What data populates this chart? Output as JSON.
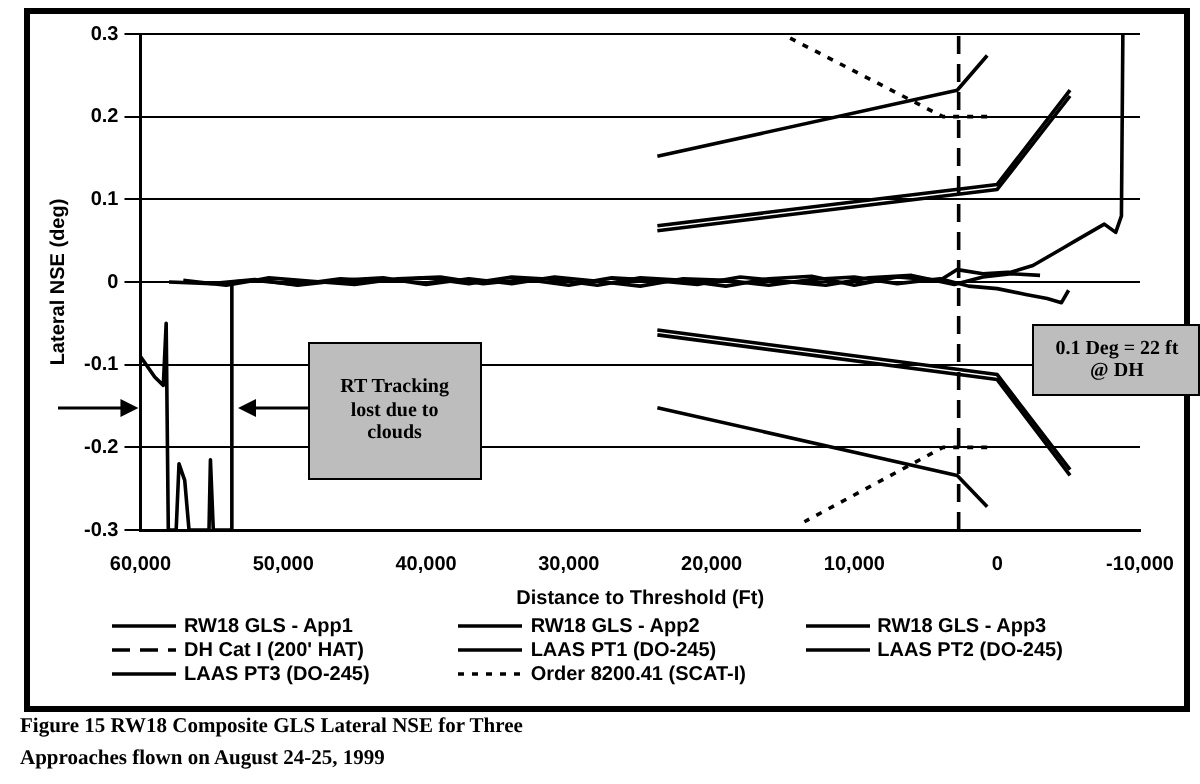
{
  "chart_data": {
    "type": "line",
    "xlabel": "Distance to Threshold (Ft)",
    "ylabel": "Lateral NSE (deg)",
    "xlim": [
      60000,
      -10000
    ],
    "xticks": [
      {
        "value": 60000,
        "label": "60,000"
      },
      {
        "value": 50000,
        "label": "50,000"
      },
      {
        "value": 40000,
        "label": "40,000"
      },
      {
        "value": 30000,
        "label": "30,000"
      },
      {
        "value": 20000,
        "label": "20,000"
      },
      {
        "value": 10000,
        "label": "10,000"
      },
      0,
      {
        "value": -10000,
        "label": "-10,000"
      }
    ],
    "ylim": [
      -0.3,
      0.3
    ],
    "yticks": [
      -0.3,
      -0.2,
      -0.1,
      0,
      0.1,
      0.2,
      0.3
    ],
    "grid": "y",
    "legend": "bottom",
    "marker": "none",
    "annotations": [
      "RT Tracking lost due to clouds",
      "0.1 Deg = 22 ft @ DH",
      "Figure 15 RW18 Composite GLS Lateral NSE for Three Approaches flown on August 24-25, 1999"
    ],
    "series": [
      {
        "name": "RW18 GLS - App1",
        "color": "#000000",
        "line_style": "solid",
        "x": [
          60000,
          59000,
          58400,
          58200,
          58050,
          57500,
          57300,
          56900,
          56600,
          55200,
          55100,
          54900,
          53700,
          53600,
          52000,
          49000,
          46000,
          43000,
          40000,
          37000,
          34000,
          31000,
          28000,
          25000,
          22000,
          19000,
          16000,
          13000,
          10000,
          7000,
          4000,
          2800,
          1000,
          -1000,
          -2500,
          -3500,
          -4500,
          -5500,
          -6500,
          -7500,
          -8300,
          -8700,
          -8800
        ],
        "values": [
          -0.09,
          -0.115,
          -0.125,
          -0.05,
          -0.3,
          -0.3,
          -0.22,
          -0.24,
          -0.3,
          -0.3,
          -0.215,
          -0.3,
          -0.3,
          0,
          0.002,
          -0.003,
          0.004,
          0.001,
          0.005,
          -0.002,
          0.006,
          0.003,
          -0.004,
          0.005,
          0.002,
          -0.005,
          0.004,
          0.007,
          -0.004,
          0.006,
          0.002,
          0.015,
          0.01,
          0.012,
          0.02,
          0.03,
          0.04,
          0.05,
          0.06,
          0.07,
          0.06,
          0.08,
          0.3
        ]
      },
      {
        "name": "RW18 GLS - App2",
        "color": "#000000",
        "line_style": "solid",
        "x": [
          58000,
          55000,
          52000,
          49000,
          46000,
          43000,
          40000,
          37000,
          34000,
          31000,
          28000,
          25000,
          22000,
          19000,
          16000,
          13000,
          10000,
          7000,
          4000,
          2000,
          0,
          -2000,
          -3500,
          -4500,
          -5000
        ],
        "values": [
          0,
          -0.002,
          0.003,
          -0.004,
          0.002,
          0.005,
          -0.003,
          0.004,
          -0.002,
          0.006,
          0.001,
          -0.005,
          0.004,
          0.002,
          -0.004,
          0.003,
          0.006,
          -0.002,
          0.004,
          -0.005,
          -0.008,
          -0.015,
          -0.02,
          -0.025,
          -0.01
        ]
      },
      {
        "name": "RW18 GLS - App3",
        "color": "#000000",
        "line_style": "solid",
        "x": [
          57000,
          54000,
          51000,
          48000,
          45000,
          42000,
          39000,
          36000,
          33000,
          30000,
          27000,
          24000,
          21000,
          18000,
          15000,
          12000,
          9000,
          6000,
          3000,
          1000,
          -1000,
          -3000
        ],
        "values": [
          0.002,
          -0.004,
          0.005,
          0.001,
          -0.003,
          0.004,
          0.006,
          -0.002,
          0.003,
          -0.004,
          0.005,
          0.002,
          -0.003,
          0.006,
          0.001,
          -0.004,
          0.005,
          0.008,
          -0.003,
          0.006,
          0.01,
          0.008
        ]
      },
      {
        "name": "DH Cat I (200' HAT)",
        "color": "#000000",
        "line_style": "dashed",
        "x": [
          2700,
          2700
        ],
        "values": [
          -0.3,
          0.3
        ]
      },
      {
        "name": "LAAS PT1 (DO-245)",
        "color": "#000000",
        "line_style": "solid",
        "x": [
          23800,
          2800,
          700
        ],
        "values": [
          0.152,
          0.232,
          0.274
        ]
      },
      {
        "color": "#000000",
        "line_style": "solid",
        "x": [
          700,
          2800,
          23800
        ],
        "values": [
          -0.272,
          -0.234,
          -0.152
        ]
      },
      {
        "name": "LAAS PT2 (DO-245)",
        "color": "#000000",
        "line_style": "solid",
        "x": [
          23800,
          0,
          -5100
        ],
        "values": [
          0.062,
          0.112,
          0.225
        ]
      },
      {
        "color": "#000000",
        "line_style": "solid",
        "x": [
          -5100,
          0,
          23800
        ],
        "values": [
          -0.227,
          -0.112,
          -0.058
        ]
      },
      {
        "name": "LAAS PT3 (DO-245)",
        "color": "#000000",
        "line_style": "solid",
        "x": [
          23800,
          0,
          -5100
        ],
        "values": [
          0.068,
          0.118,
          0.232
        ]
      },
      {
        "color": "#000000",
        "line_style": "solid",
        "x": [
          -5100,
          0,
          23800
        ],
        "values": [
          -0.234,
          -0.118,
          -0.064
        ]
      },
      {
        "name": "Order 8200.41 (SCAT-I)",
        "color": "#000000",
        "line_style": "dotted",
        "x": [
          14500,
          3800,
          700
        ],
        "values": [
          0.295,
          0.2,
          0.2
        ]
      },
      {
        "color": "#000000",
        "line_style": "dotted",
        "x": [
          700,
          3800,
          13500
        ],
        "values": [
          -0.2,
          -0.2,
          -0.29
        ]
      }
    ]
  }
}
